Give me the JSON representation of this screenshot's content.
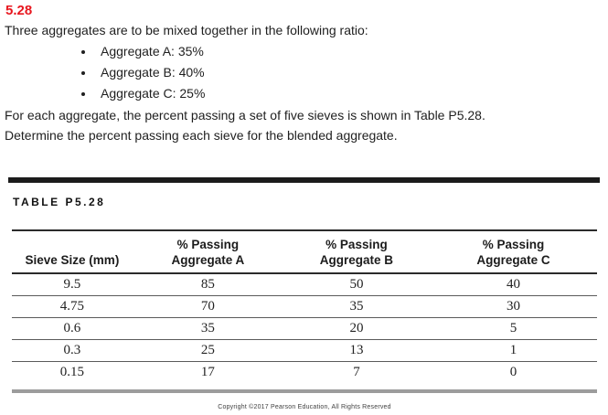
{
  "page": {
    "problem_number": "5.28",
    "intro": "Three aggregates are to be mixed together in the following ratio:",
    "bullets": [
      "Aggregate A: 35%",
      "Aggregate B: 40%",
      "Aggregate C: 25%"
    ],
    "body_line_1": "For each aggregate, the percent passing a set of five sieves is shown in Table P5.28.",
    "body_line_2": "Determine the percent passing each sieve for the blended aggregate."
  },
  "table": {
    "caption": "TABLE P5.28",
    "headers": {
      "col1": "Sieve Size (mm)",
      "col2_line1": "% Passing",
      "col2_line2": "Aggregate A",
      "col3_line1": "% Passing",
      "col3_line2": "Aggregate B",
      "col4_line1": "% Passing",
      "col4_line2": "Aggregate C"
    },
    "rows": [
      [
        "9.5",
        "85",
        "50",
        "40"
      ],
      [
        "4.75",
        "70",
        "35",
        "30"
      ],
      [
        "0.6",
        "35",
        "20",
        "5"
      ],
      [
        "0.3",
        "25",
        "13",
        "1"
      ],
      [
        "0.15",
        "17",
        "7",
        "0"
      ]
    ]
  },
  "footer": {
    "copyright": "Copyright ©2017 Pearson Education, All Rights Reserved"
  },
  "colors": {
    "problem_number_red": "#e8171f",
    "divider_dark": "#1b1b1b",
    "table_bottom_gray": "#9c9c9c"
  }
}
